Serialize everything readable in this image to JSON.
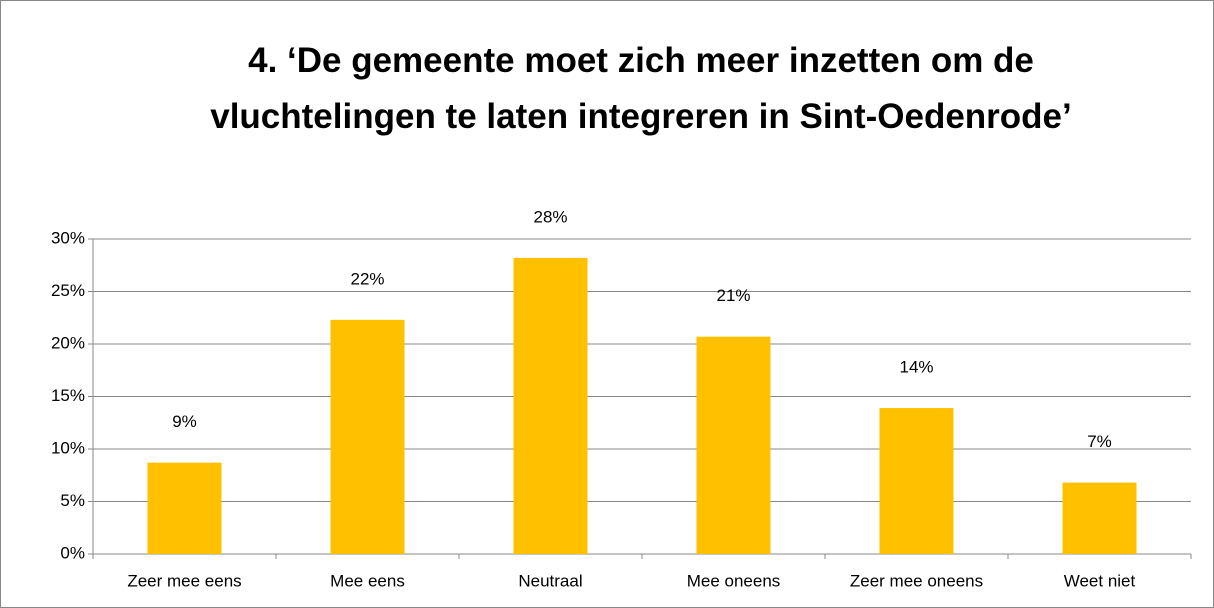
{
  "chart_data": {
    "type": "bar",
    "title": "4. ‘De gemeente moet zich meer inzetten om de vluchtelingen te laten integreren in Sint-Oedenrode’",
    "categories": [
      "Zeer mee eens",
      "Mee eens",
      "Neutraal",
      "Mee oneens",
      "Zeer mee oneens",
      "Weet niet"
    ],
    "values": [
      8.7,
      22.3,
      28.2,
      20.7,
      13.9,
      6.8
    ],
    "value_labels": [
      "9%",
      "22%",
      "28%",
      "21%",
      "14%",
      "7%"
    ],
    "color": "#ffc000",
    "ylim": [
      0,
      30
    ],
    "yticks": [
      {
        "value": 0,
        "label": "0%"
      },
      {
        "value": 5,
        "label": "5%"
      },
      {
        "value": 10,
        "label": "10%"
      },
      {
        "value": 15,
        "label": "15%"
      },
      {
        "value": 20,
        "label": "20%"
      },
      {
        "value": 25,
        "label": "25%"
      },
      {
        "value": 30,
        "label": "30%"
      }
    ],
    "grid": true
  }
}
